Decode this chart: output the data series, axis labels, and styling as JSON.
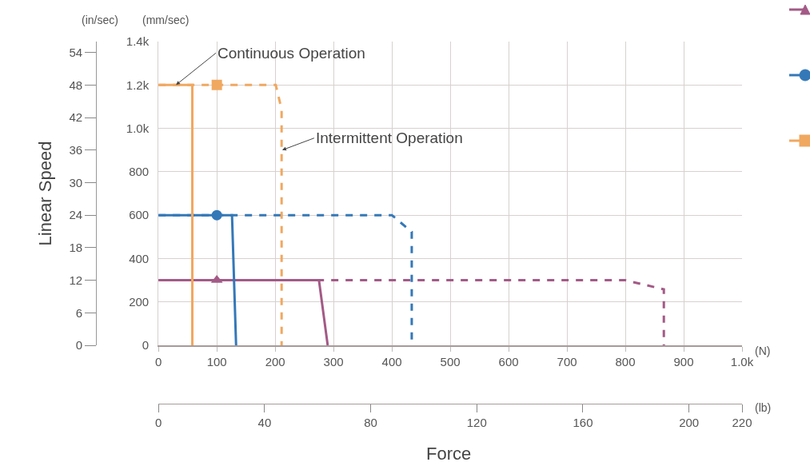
{
  "chart_data": {
    "type": "line",
    "xlabel": "Force",
    "y2label": "Linear Speed",
    "xlim": [
      0,
      1000
    ],
    "xticks": [
      0,
      100,
      200,
      300,
      400,
      500,
      600,
      700,
      800,
      900,
      {
        "value": 1000,
        "label": "1.0k"
      }
    ],
    "x2lim": [
      0,
      220
    ],
    "x2ticks": [
      0,
      40,
      80,
      120,
      160,
      200,
      220
    ],
    "ylim": [
      0,
      1400
    ],
    "yticks": [
      0,
      200,
      400,
      600,
      800,
      {
        "value": 1000,
        "label": "1.0k"
      },
      {
        "value": 1200,
        "label": "1.2k"
      },
      {
        "value": 1400,
        "label": "1.4k"
      }
    ],
    "y2lim": [
      0,
      56
    ],
    "y2ticks": [
      0,
      6,
      12,
      18,
      24,
      30,
      36,
      42,
      48,
      54
    ],
    "grid": true,
    "series": [
      {
        "color": "#a35a86",
        "line_style": "solid",
        "marker": "none",
        "x": [
          0,
          275,
          290
        ],
        "values": [
          300,
          300,
          0
        ]
      },
      {
        "color": "#a35a86",
        "line_style": "dashed",
        "marker": "none",
        "x": [
          0,
          800,
          866,
          866
        ],
        "values": [
          300,
          300,
          258,
          0
        ]
      },
      {
        "type": "scatter",
        "color": "#a35a86",
        "marker": "triangle",
        "x": [
          100
        ],
        "values": [
          300
        ]
      },
      {
        "color": "#3478b8",
        "line_style": "solid",
        "marker": "none",
        "x": [
          0,
          126,
          133
        ],
        "values": [
          600,
          600,
          0
        ]
      },
      {
        "color": "#3478b8",
        "line_style": "dashed",
        "marker": "none",
        "x": [
          0,
          400,
          434,
          434
        ],
        "values": [
          600,
          600,
          523,
          0
        ]
      },
      {
        "type": "scatter",
        "color": "#3478b8",
        "marker": "circle",
        "x": [
          100
        ],
        "values": [
          600
        ]
      },
      {
        "color": "#f0a860",
        "line_style": "solid",
        "marker": "none",
        "x": [
          0,
          58,
          58
        ],
        "values": [
          1200,
          1200,
          0
        ]
      },
      {
        "color": "#f0a860",
        "line_style": "dashed",
        "marker": "none",
        "x": [
          0,
          201,
          211,
          211
        ],
        "values": [
          1200,
          1200,
          1087,
          0
        ]
      },
      {
        "type": "scatter",
        "color": "#f0a860",
        "marker": "square",
        "x": [
          100
        ],
        "values": [
          1200
        ]
      }
    ],
    "annotations": [
      {
        "text": "Continuous Operation",
        "x": 30,
        "y": 1200
      },
      {
        "text": "Intermittent Operation",
        "x": 212,
        "y": 900
      },
      "(in/sec)",
      "(mm/sec)",
      "(N)",
      "(lb)"
    ]
  }
}
